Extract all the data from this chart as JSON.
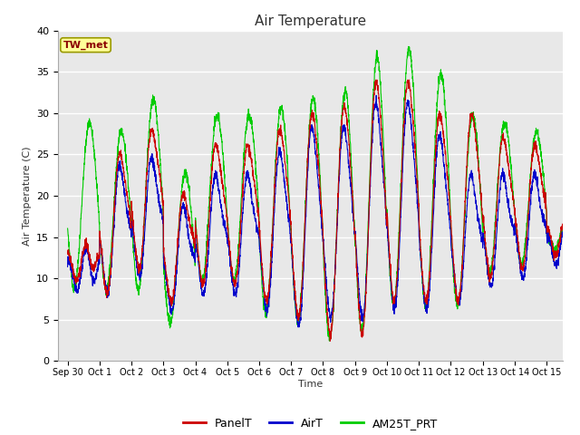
{
  "title": "Air Temperature",
  "ylabel": "Air Temperature (C)",
  "xlabel": "Time",
  "ylim": [
    0,
    40
  ],
  "annotation_text": "TW_met",
  "annotation_color": "#8B0000",
  "annotation_bg": "#FFFF99",
  "annotation_border": "#999900",
  "line_colors": [
    "#CC0000",
    "#0000CC",
    "#00CC00"
  ],
  "line_labels": [
    "PanelT",
    "AirT",
    "AM25T_PRT"
  ],
  "bg_color": "#E8E8E8",
  "tick_labels": [
    "Sep 30",
    "Oct 1",
    "Oct 2",
    "Oct 3",
    "Oct 4",
    "Oct 5",
    "Oct 6",
    "Oct 7",
    "Oct 8",
    "Oct 9",
    "Oct 10",
    "Oct 11",
    "Oct 12",
    "Oct 13",
    "Oct 14",
    "Oct 15"
  ],
  "tick_positions": [
    0,
    1,
    2,
    3,
    4,
    5,
    6,
    7,
    8,
    9,
    10,
    11,
    12,
    13,
    14,
    15
  ],
  "figsize": [
    6.4,
    4.8
  ],
  "dpi": 100
}
